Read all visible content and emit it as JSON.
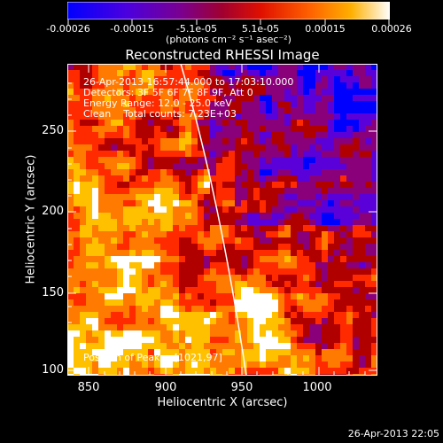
{
  "colorbar": {
    "tick_labels": [
      "-0.00026",
      "-0.00015",
      "-5.1e-05",
      "5.1e-05",
      "0.00015",
      "0.00026"
    ],
    "unit_label": "(photons cm⁻² s⁻¹ asec⁻²)",
    "colors": [
      "#0000ff",
      "#5a00d8",
      "#8a007a",
      "#b00000",
      "#ff2a00",
      "#ff7a00",
      "#ffc000",
      "#ffffff"
    ]
  },
  "plot": {
    "title": "Reconstructed RHESSI Image",
    "xlabel": "Heliocentric X (arcsec)",
    "ylabel": "Heliocentric Y (arcsec)",
    "x_ticks": [
      "850",
      "900",
      "950",
      "1000"
    ],
    "y_ticks": [
      "100",
      "150",
      "200",
      "250"
    ],
    "info_lines": [
      "26-Apr-2013 16:57:44.000 to 17:03:10.000",
      "Detectors: 3F 5F 6F 7F 8F 9F, Att 0",
      "Energy Range: 12.0 - 25.0 keV",
      "Clean    Total counts: 7.23E+03"
    ],
    "peak_label": "Position of Peak = [1021,97]"
  },
  "footer": {
    "timestamp": "26-Apr-2013 22:05"
  }
}
